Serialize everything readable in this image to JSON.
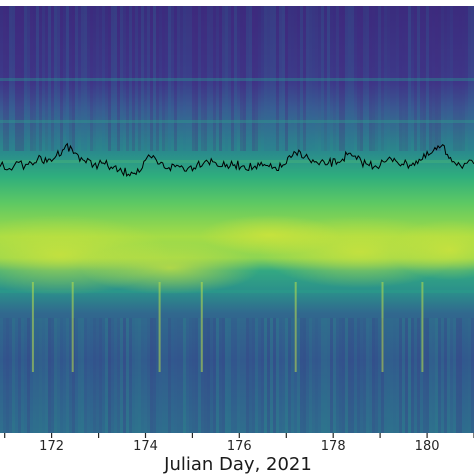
{
  "chart_data": {
    "type": "heatmap",
    "title": "",
    "xlabel": "Julian Day, 2021",
    "ylabel": "",
    "x_range": [
      170.9,
      181.0
    ],
    "x_ticks": [
      171,
      172,
      173,
      174,
      175,
      176,
      177,
      178,
      179,
      180,
      181
    ],
    "x_tick_labels": [
      {
        "value": 172,
        "label": "172"
      },
      {
        "value": 174,
        "label": "174"
      },
      {
        "value": 176,
        "label": "176"
      },
      {
        "value": 178,
        "label": "178"
      },
      {
        "value": 180,
        "label": "180"
      }
    ],
    "colormap": "viridis",
    "grid": false,
    "colors": {
      "low": "#3b2f7f",
      "mid_low": "#2f5f8e",
      "mid": "#26908c",
      "high": "#6ccf5c",
      "peak": "#c9e43a",
      "overlay_line": "#000000"
    },
    "overlay_series": {
      "name": "",
      "color": "#000000",
      "x": [
        170.9,
        171.2,
        171.5,
        171.7,
        171.9,
        172.1,
        172.3,
        172.5,
        172.7,
        172.9,
        173.1,
        173.3,
        173.5,
        173.7,
        173.9,
        174.1,
        174.3,
        174.5,
        174.7,
        174.9,
        175.1,
        175.3,
        175.5,
        175.7,
        175.9,
        176.1,
        176.3,
        176.5,
        176.7,
        176.9,
        177.1,
        177.3,
        177.5,
        177.7,
        177.9,
        178.1,
        178.3,
        178.5,
        178.7,
        178.9,
        179.1,
        179.3,
        179.5,
        179.7,
        179.9,
        180.1,
        180.3,
        180.5,
        180.7,
        181.0
      ],
      "y": [
        0.42,
        0.44,
        0.47,
        0.58,
        0.52,
        0.66,
        0.88,
        0.72,
        0.55,
        0.46,
        0.5,
        0.38,
        0.3,
        0.3,
        0.34,
        0.64,
        0.48,
        0.4,
        0.44,
        0.38,
        0.47,
        0.56,
        0.5,
        0.42,
        0.46,
        0.44,
        0.4,
        0.44,
        0.38,
        0.41,
        0.62,
        0.74,
        0.56,
        0.46,
        0.5,
        0.52,
        0.68,
        0.58,
        0.48,
        0.44,
        0.52,
        0.6,
        0.46,
        0.5,
        0.58,
        0.72,
        0.86,
        0.62,
        0.46,
        0.48
      ]
    },
    "bright_streaks_x": [
      171.6,
      172.45,
      174.3,
      175.2,
      177.2,
      179.05,
      179.9
    ]
  }
}
